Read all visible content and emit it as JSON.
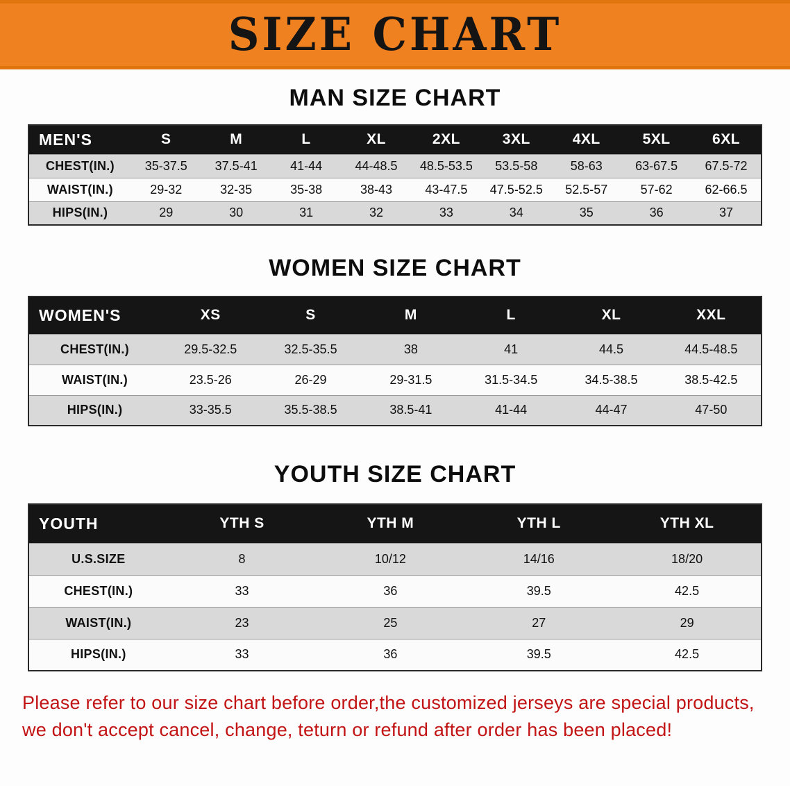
{
  "banner": {
    "title": "SIZE CHART",
    "bg_color": "#f08121",
    "title_color": "#141414"
  },
  "sections": [
    {
      "id": "men",
      "heading": "MAN SIZE CHART",
      "table": {
        "corner": "MEN'S",
        "columns": [
          "S",
          "M",
          "L",
          "XL",
          "2XL",
          "3XL",
          "4XL",
          "5XL",
          "6XL"
        ],
        "rows": [
          {
            "label": "CHEST(IN.)",
            "values": [
              "35-37.5",
              "37.5-41",
              "41-44",
              "44-48.5",
              "48.5-53.5",
              "53.5-58",
              "58-63",
              "63-67.5",
              "67.5-72"
            ]
          },
          {
            "label": "WAIST(IN.)",
            "values": [
              "29-32",
              "32-35",
              "35-38",
              "38-43",
              "43-47.5",
              "47.5-52.5",
              "52.5-57",
              "57-62",
              "62-66.5"
            ]
          },
          {
            "label": "HIPS(IN.)",
            "values": [
              "29",
              "30",
              "31",
              "32",
              "33",
              "34",
              "35",
              "36",
              "37"
            ]
          }
        ]
      }
    },
    {
      "id": "women",
      "heading": "WOMEN SIZE CHART",
      "table": {
        "corner": "WOMEN'S",
        "columns": [
          "XS",
          "S",
          "M",
          "L",
          "XL",
          "XXL"
        ],
        "rows": [
          {
            "label": "CHEST(IN.)",
            "values": [
              "29.5-32.5",
              "32.5-35.5",
              "38",
              "41",
              "44.5",
              "44.5-48.5"
            ]
          },
          {
            "label": "WAIST(IN.)",
            "values": [
              "23.5-26",
              "26-29",
              "29-31.5",
              "31.5-34.5",
              "34.5-38.5",
              "38.5-42.5"
            ]
          },
          {
            "label": "HIPS(IN.)",
            "values": [
              "33-35.5",
              "35.5-38.5",
              "38.5-41",
              "41-44",
              "44-47",
              "47-50"
            ]
          }
        ]
      }
    },
    {
      "id": "youth",
      "heading": "YOUTH SIZE CHART",
      "table": {
        "corner": "YOUTH",
        "columns": [
          "YTH S",
          "YTH M",
          "YTH L",
          "YTH XL"
        ],
        "rows": [
          {
            "label": "U.S.SIZE",
            "values": [
              "8",
              "10/12",
              "14/16",
              "18/20"
            ]
          },
          {
            "label": "CHEST(IN.)",
            "values": [
              "33",
              "36",
              "39.5",
              "42.5"
            ]
          },
          {
            "label": "WAIST(IN.)",
            "values": [
              "23",
              "25",
              "27",
              "29"
            ]
          },
          {
            "label": "HIPS(IN.)",
            "values": [
              "33",
              "36",
              "39.5",
              "42.5"
            ]
          }
        ]
      }
    }
  ],
  "disclaimer": {
    "line1": "Please refer to our size chart before order,the customized jerseys are special products,",
    "line2": "we don't accept cancel, change, teturn or refund after order has been placed!",
    "color": "#c21414"
  }
}
